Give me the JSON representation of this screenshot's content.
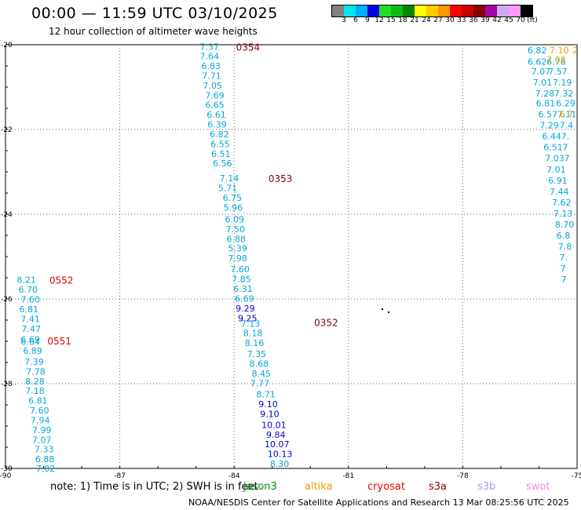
{
  "header": {
    "title": "00:00 — 11:59 UTC 03/10/2025",
    "subtitle": "12 hour collection of altimeter wave heights"
  },
  "colorbar": {
    "colors": [
      "#808080",
      "#00e5ee",
      "#00b0ff",
      "#0000ee",
      "#22dd22",
      "#11bb11",
      "#008800",
      "#ffff00",
      "#ffcc00",
      "#ff9900",
      "#ff0000",
      "#cc0000",
      "#880000",
      "#aa00aa",
      "#ccaaee",
      "#ff99ff",
      "#000000"
    ],
    "labels": [
      "3",
      "6",
      "9",
      "12",
      "15",
      "18",
      "21",
      "24",
      "27",
      "30",
      "33",
      "36",
      "39",
      "42",
      "45",
      "70",
      "(ft)"
    ]
  },
  "map": {
    "lon_range": [
      -90,
      -75
    ],
    "lat_range": [
      -30,
      -20
    ],
    "x_ticks": [
      "-90",
      "-87",
      "-84",
      "-81",
      "-78",
      "-75"
    ],
    "y_ticks": [
      "-20",
      "-22",
      "-24",
      "-26",
      "-28",
      "-30"
    ]
  },
  "passes": [
    {
      "label": "0354",
      "lon": -83.95,
      "lat": -20.05,
      "color": "#8b0000"
    },
    {
      "label": "0353",
      "lon": -83.1,
      "lat": -23.15,
      "color": "#8b0000"
    },
    {
      "label": "0352",
      "lon": -81.9,
      "lat": -26.55,
      "color": "#8b0000"
    },
    {
      "label": "0552",
      "lon": -88.85,
      "lat": -25.55,
      "color": "#dd0000"
    },
    {
      "label": "0551",
      "lon": -88.9,
      "lat": -26.98,
      "color": "#dd0000"
    }
  ],
  "tracks": [
    {
      "name": "track-center",
      "points": [
        {
          "lon": -84.9,
          "lat": -20.05,
          "v": "7.37"
        },
        {
          "lon": -84.9,
          "lat": -20.27,
          "v": "7.64"
        },
        {
          "lon": -84.86,
          "lat": -20.5,
          "v": "6.83"
        },
        {
          "lon": -84.84,
          "lat": -20.73,
          "v": "7.71"
        },
        {
          "lon": -84.82,
          "lat": -20.96,
          "v": "7.05"
        },
        {
          "lon": -84.76,
          "lat": -21.19,
          "v": "7.69"
        },
        {
          "lon": -84.76,
          "lat": -21.42,
          "v": "6.65"
        },
        {
          "lon": -84.72,
          "lat": -21.65,
          "v": "6.61"
        },
        {
          "lon": -84.7,
          "lat": -21.88,
          "v": "6.39"
        },
        {
          "lon": -84.64,
          "lat": -22.11,
          "v": "6.82"
        },
        {
          "lon": -84.62,
          "lat": -22.34,
          "v": "6.55"
        },
        {
          "lon": -84.6,
          "lat": -22.57,
          "v": "6.51"
        },
        {
          "lon": -84.56,
          "lat": -22.8,
          "v": "6.56"
        },
        {
          "lon": -84.38,
          "lat": -23.15,
          "v": "7.14"
        },
        {
          "lon": -84.42,
          "lat": -23.38,
          "v": "5.71"
        },
        {
          "lon": -84.3,
          "lat": -23.61,
          "v": "6.75"
        },
        {
          "lon": -84.28,
          "lat": -23.84,
          "v": "5.96"
        },
        {
          "lon": -84.24,
          "lat": -24.12,
          "v": "6.09"
        },
        {
          "lon": -84.22,
          "lat": -24.35,
          "v": "7.50"
        },
        {
          "lon": -84.2,
          "lat": -24.58,
          "v": "6.88"
        },
        {
          "lon": -84.16,
          "lat": -24.81,
          "v": "5.39"
        },
        {
          "lon": -84.16,
          "lat": -25.04,
          "v": "7.98"
        },
        {
          "lon": -84.1,
          "lat": -25.3,
          "v": "7.60"
        },
        {
          "lon": -84.06,
          "lat": -25.53,
          "v": "7.85"
        },
        {
          "lon": -84.02,
          "lat": -25.76,
          "v": "6.31"
        },
        {
          "lon": -83.98,
          "lat": -25.99,
          "v": "6.69"
        },
        {
          "lon": -83.96,
          "lat": -26.22,
          "v": "9.29",
          "dark": true
        },
        {
          "lon": -83.9,
          "lat": -26.45,
          "v": "9.25",
          "dark": true
        },
        {
          "lon": -83.82,
          "lat": -26.58,
          "v": "7.13"
        },
        {
          "lon": -83.76,
          "lat": -26.81,
          "v": "8.18"
        },
        {
          "lon": -83.72,
          "lat": -27.04,
          "v": "8.16"
        },
        {
          "lon": -83.66,
          "lat": -27.3,
          "v": "7.35"
        },
        {
          "lon": -83.6,
          "lat": -27.53,
          "v": "8.68"
        },
        {
          "lon": -83.54,
          "lat": -27.76,
          "v": "8.45"
        },
        {
          "lon": -83.58,
          "lat": -27.99,
          "v": "7.77"
        },
        {
          "lon": -83.42,
          "lat": -28.25,
          "v": "8.71"
        },
        {
          "lon": -83.36,
          "lat": -28.48,
          "v": "9.10",
          "dark": true
        },
        {
          "lon": -83.32,
          "lat": -28.71,
          "v": "9.10",
          "dark": true
        },
        {
          "lon": -83.28,
          "lat": -28.97,
          "v": "10.01",
          "dark": true
        },
        {
          "lon": -83.16,
          "lat": -29.2,
          "v": "9.84",
          "dark": true
        },
        {
          "lon": -83.2,
          "lat": -29.43,
          "v": "10.07",
          "dark": true
        },
        {
          "lon": -83.12,
          "lat": -29.66,
          "v": "10.13",
          "dark": true
        },
        {
          "lon": -83.06,
          "lat": -29.89,
          "v": "8.30"
        }
      ]
    },
    {
      "name": "track-left",
      "points": [
        {
          "lon": -89.7,
          "lat": -25.55,
          "v": "8.21"
        },
        {
          "lon": -89.66,
          "lat": -25.78,
          "v": "6.70"
        },
        {
          "lon": -89.6,
          "lat": -26.01,
          "v": "7.60"
        },
        {
          "lon": -89.64,
          "lat": -26.24,
          "v": "6.81"
        },
        {
          "lon": -89.6,
          "lat": -26.47,
          "v": "7.41"
        },
        {
          "lon": -89.58,
          "lat": -26.7,
          "v": "7.47"
        },
        {
          "lon": -89.6,
          "lat": -26.95,
          "v": "6.69"
        },
        {
          "lon": -89.6,
          "lat": -27.01,
          "v": "6.64"
        },
        {
          "lon": -89.54,
          "lat": -27.22,
          "v": "6.89"
        },
        {
          "lon": -89.5,
          "lat": -27.48,
          "v": "7.39"
        },
        {
          "lon": -89.46,
          "lat": -27.71,
          "v": "7.78"
        },
        {
          "lon": -89.48,
          "lat": -27.94,
          "v": "8.28"
        },
        {
          "lon": -89.48,
          "lat": -28.17,
          "v": "7.18"
        },
        {
          "lon": -89.4,
          "lat": -28.4,
          "v": "6.81"
        },
        {
          "lon": -89.36,
          "lat": -28.63,
          "v": "7.60"
        },
        {
          "lon": -89.34,
          "lat": -28.86,
          "v": "7.94"
        },
        {
          "lon": -89.3,
          "lat": -29.09,
          "v": "7.99"
        },
        {
          "lon": -89.3,
          "lat": -29.32,
          "v": "7.07"
        },
        {
          "lon": -89.24,
          "lat": -29.55,
          "v": "7.33"
        },
        {
          "lon": -89.22,
          "lat": -29.78,
          "v": "6.88"
        },
        {
          "lon": -89.2,
          "lat": -30.0,
          "v": "7.02"
        }
      ]
    },
    {
      "name": "track-right-a",
      "points": [
        {
          "lon": -76.3,
          "lat": -20.13,
          "v": "6.82"
        },
        {
          "lon": -76.3,
          "lat": -20.4,
          "v": "6.62"
        },
        {
          "lon": -76.2,
          "lat": -20.63,
          "v": "7.07"
        },
        {
          "lon": -76.16,
          "lat": -20.89,
          "v": "7.01"
        },
        {
          "lon": -76.1,
          "lat": -21.15,
          "v": "7.28"
        },
        {
          "lon": -76.08,
          "lat": -21.38,
          "v": "6.81"
        },
        {
          "lon": -76.02,
          "lat": -21.64,
          "v": "6.57"
        },
        {
          "lon": -75.98,
          "lat": -21.9,
          "v": "7.29"
        },
        {
          "lon": -75.92,
          "lat": -22.16,
          "v": "6.44"
        },
        {
          "lon": -75.88,
          "lat": -22.42,
          "v": "6.51"
        },
        {
          "lon": -75.84,
          "lat": -22.68,
          "v": "7.03"
        },
        {
          "lon": -75.8,
          "lat": -22.94,
          "v": "7.01"
        },
        {
          "lon": -75.76,
          "lat": -23.2,
          "v": "6.91"
        },
        {
          "lon": -75.72,
          "lat": -23.46,
          "v": "7.44"
        },
        {
          "lon": -75.66,
          "lat": -23.72,
          "v": "7.62"
        },
        {
          "lon": -75.62,
          "lat": -23.98,
          "v": "7.13"
        },
        {
          "lon": -75.58,
          "lat": -24.24,
          "v": "8.70"
        },
        {
          "lon": -75.54,
          "lat": -24.5,
          "v": "6.8"
        },
        {
          "lon": -75.5,
          "lat": -24.76,
          "v": "7.8"
        },
        {
          "lon": -75.46,
          "lat": -25.02,
          "v": "7."
        },
        {
          "lon": -75.44,
          "lat": -25.28,
          "v": "7"
        },
        {
          "lon": -75.42,
          "lat": -25.54,
          "v": "7"
        }
      ]
    },
    {
      "name": "track-right-b",
      "points": [
        {
          "lon": -75.8,
          "lat": -20.4,
          "v": "6.78"
        },
        {
          "lon": -75.76,
          "lat": -20.63,
          "v": "7.57"
        },
        {
          "lon": -75.64,
          "lat": -20.89,
          "v": "7.19"
        },
        {
          "lon": -75.6,
          "lat": -21.15,
          "v": "7.32"
        },
        {
          "lon": -75.55,
          "lat": -21.38,
          "v": "6.29"
        },
        {
          "lon": -75.52,
          "lat": -21.64,
          "v": "7.11"
        },
        {
          "lon": -75.46,
          "lat": -21.9,
          "v": "7.4"
        },
        {
          "lon": -75.42,
          "lat": -22.16,
          "v": "7."
        },
        {
          "lon": -75.38,
          "lat": -22.42,
          "v": "7"
        },
        {
          "lon": -75.34,
          "lat": -22.68,
          "v": "7"
        }
      ]
    }
  ],
  "other_labels": [
    {
      "name": "label-orange-1",
      "v": "7.10",
      "lon": -75.72,
      "lat": -20.13,
      "color": "#f0a000"
    },
    {
      "name": "label-orange-2",
      "v": "2",
      "lon": -75.12,
      "lat": -20.13,
      "color": "#f0a000"
    },
    {
      "name": "label-orange-3",
      "v": "7.08",
      "lon": -75.8,
      "lat": -20.35,
      "color": "#f0a000"
    },
    {
      "name": "label-orange-4",
      "v": "6.7",
      "lon": -75.46,
      "lat": -21.64,
      "color": "#d09000"
    }
  ],
  "footer": {
    "note_prefix": "note:  1) Time is in UTC;  2) SWH is in feet",
    "legend": [
      {
        "name": "jason3",
        "text": "jason3",
        "color": "#008800"
      },
      {
        "name": "altika",
        "text": "altika",
        "color": "#f0a000"
      },
      {
        "name": "cryosat",
        "text": "cryosat",
        "color": "#ee0000"
      },
      {
        "name": "s3a",
        "text": "s3a",
        "color": "#8b0000"
      },
      {
        "name": "s3b",
        "text": "s3b",
        "color": "#aa99ee"
      },
      {
        "name": "swot",
        "text": "swot",
        "color": "#ee88ee"
      }
    ],
    "credit": "NOAA/NESDIS Center for Satellite Applications and Research     13 Mar 08:25:56 UTC 2025"
  },
  "colors": {
    "cyan_value": "#00a8d8",
    "dark_value": "#0000cc",
    "grid": "#666666"
  }
}
